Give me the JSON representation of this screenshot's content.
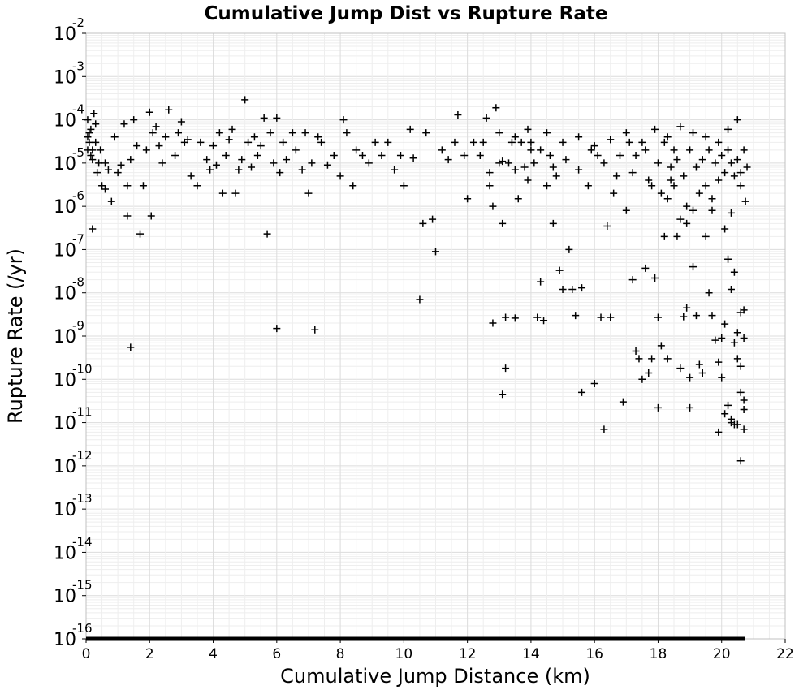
{
  "chart_data": {
    "type": "scatter",
    "title": "Cumulative Jump Dist vs Rupture Rate",
    "xlabel": "Cumulative Jump Distance (km)",
    "ylabel": "Rupture Rate (/yr)",
    "xlim": [
      0,
      22
    ],
    "ylim": [
      1e-16,
      0.01
    ],
    "y_scale": "log",
    "grid": true,
    "marker": "plus",
    "marker_color": "#000000",
    "x_ticks": [
      "0",
      "2",
      "4",
      "6",
      "8",
      "10",
      "12",
      "14",
      "16",
      "18",
      "20",
      "22"
    ],
    "y_ticks": [
      {
        "base": "10",
        "exp": "-2"
      },
      {
        "base": "10",
        "exp": "-3"
      },
      {
        "base": "10",
        "exp": "-4"
      },
      {
        "base": "10",
        "exp": "-5"
      },
      {
        "base": "10",
        "exp": "-6"
      },
      {
        "base": "10",
        "exp": "-7"
      },
      {
        "base": "10",
        "exp": "-8"
      },
      {
        "base": "10",
        "exp": "-9"
      },
      {
        "base": "10",
        "exp": "-10"
      },
      {
        "base": "10",
        "exp": "-11"
      },
      {
        "base": "10",
        "exp": "-12"
      },
      {
        "base": "10",
        "exp": "-13"
      },
      {
        "base": "10",
        "exp": "-14"
      },
      {
        "base": "10",
        "exp": "-15"
      },
      {
        "base": "10",
        "exp": "-16"
      }
    ],
    "points": [
      [
        0.05,
        0.0001
      ],
      [
        0.1,
        3e-05
      ],
      [
        0.15,
        1.5e-05
      ],
      [
        0.2,
        2e-05
      ],
      [
        0.1,
        5e-05
      ],
      [
        0.3,
        8e-05
      ],
      [
        0.25,
        0.00014
      ],
      [
        0.35,
        6e-06
      ],
      [
        0.05,
        4e-05
      ],
      [
        0.4,
        1e-05
      ],
      [
        0.5,
        3e-06
      ],
      [
        0.6,
        2.5e-06
      ],
      [
        0.7,
        7e-06
      ],
      [
        0.8,
        1.3e-06
      ],
      [
        0.2,
        3e-07
      ],
      [
        0.9,
        4e-05
      ],
      [
        1.0,
        6e-06
      ],
      [
        1.1,
        9e-06
      ],
      [
        1.2,
        8e-05
      ],
      [
        1.3,
        3e-06
      ],
      [
        1.4,
        1.2e-05
      ],
      [
        1.5,
        0.0001
      ],
      [
        1.6,
        2.5e-05
      ],
      [
        1.7,
        2.3e-07
      ],
      [
        1.8,
        3e-06
      ],
      [
        1.9,
        2e-05
      ],
      [
        2.0,
        0.00015
      ],
      [
        2.05,
        6e-07
      ],
      [
        2.1,
        5e-05
      ],
      [
        2.2,
        7e-05
      ],
      [
        2.3,
        2.5e-05
      ],
      [
        2.5,
        4e-05
      ],
      [
        2.6,
        0.00017
      ],
      [
        2.8,
        1.5e-05
      ],
      [
        2.9,
        5e-05
      ],
      [
        3.0,
        9e-05
      ],
      [
        3.1,
        3e-05
      ],
      [
        3.3,
        5e-06
      ],
      [
        3.6,
        3e-05
      ],
      [
        3.8,
        1.2e-05
      ],
      [
        3.5,
        3e-06
      ],
      [
        3.9,
        7e-06
      ],
      [
        4.0,
        2.5e-05
      ],
      [
        4.1,
        9e-06
      ],
      [
        4.2,
        5e-05
      ],
      [
        4.3,
        2e-06
      ],
      [
        4.4,
        1.5e-05
      ],
      [
        4.5,
        3.5e-05
      ],
      [
        4.6,
        6e-05
      ],
      [
        4.7,
        2e-06
      ],
      [
        4.8,
        7e-06
      ],
      [
        4.9,
        1.2e-05
      ],
      [
        5.0,
        0.00029
      ],
      [
        5.1,
        3e-05
      ],
      [
        5.2,
        8e-06
      ],
      [
        5.3,
        4e-05
      ],
      [
        5.4,
        1.5e-05
      ],
      [
        5.5,
        2.5e-05
      ],
      [
        5.6,
        0.00011
      ],
      [
        5.7,
        2.3e-07
      ],
      [
        5.8,
        5e-05
      ],
      [
        5.9,
        1e-05
      ],
      [
        6.0,
        1.5e-09
      ],
      [
        6.0,
        0.00011
      ],
      [
        6.1,
        6e-06
      ],
      [
        6.2,
        3e-05
      ],
      [
        6.3,
        1.2e-05
      ],
      [
        6.5,
        5e-05
      ],
      [
        6.6,
        2e-05
      ],
      [
        6.8,
        7e-06
      ],
      [
        6.9,
        5e-05
      ],
      [
        7.0,
        2e-06
      ],
      [
        7.1,
        1e-05
      ],
      [
        7.2,
        1.4e-09
      ],
      [
        7.3,
        4e-05
      ],
      [
        7.4,
        3e-05
      ],
      [
        7.6,
        9e-06
      ],
      [
        7.8,
        1.5e-05
      ],
      [
        8.0,
        5e-06
      ],
      [
        8.1,
        0.0001
      ],
      [
        8.2,
        5e-05
      ],
      [
        8.4,
        3e-06
      ],
      [
        8.5,
        2e-05
      ],
      [
        8.7,
        1.5e-05
      ],
      [
        8.9,
        1e-05
      ],
      [
        9.1,
        3e-05
      ],
      [
        9.3,
        1.5e-05
      ],
      [
        9.5,
        3e-05
      ],
      [
        9.7,
        7e-06
      ],
      [
        9.9,
        1.5e-05
      ],
      [
        10.0,
        3e-06
      ],
      [
        10.2,
        6e-05
      ],
      [
        10.3,
        1.3e-05
      ],
      [
        10.5,
        7e-09
      ],
      [
        10.6,
        4e-07
      ],
      [
        10.7,
        5e-05
      ],
      [
        10.9,
        5e-07
      ],
      [
        11.0,
        9e-08
      ],
      [
        11.2,
        2e-05
      ],
      [
        11.4,
        1.2e-05
      ],
      [
        11.6,
        3e-05
      ],
      [
        11.7,
        0.00013
      ],
      [
        11.9,
        1.5e-05
      ],
      [
        12.0,
        1.5e-06
      ],
      [
        12.2,
        3e-05
      ],
      [
        12.4,
        1.5e-05
      ],
      [
        12.6,
        0.00011
      ],
      [
        12.7,
        3e-06
      ],
      [
        12.8,
        2e-09
      ],
      [
        12.8,
        1e-06
      ],
      [
        12.9,
        0.00019
      ],
      [
        13.0,
        1e-05
      ],
      [
        13.1,
        4.5e-11
      ],
      [
        13.1,
        4e-07
      ],
      [
        13.2,
        1.8e-10
      ],
      [
        13.2,
        2.7e-09
      ],
      [
        13.3,
        1e-05
      ],
      [
        13.4,
        3e-05
      ],
      [
        13.5,
        2.6e-09
      ],
      [
        13.6,
        1.5e-06
      ],
      [
        13.7,
        3e-05
      ],
      [
        13.8,
        8e-06
      ],
      [
        13.9,
        6e-05
      ],
      [
        14.0,
        2e-05
      ],
      [
        14.1,
        1e-05
      ],
      [
        14.2,
        2.7e-09
      ],
      [
        14.3,
        1.8e-08
      ],
      [
        14.4,
        2.3e-09
      ],
      [
        14.5,
        3e-06
      ],
      [
        14.6,
        1.5e-05
      ],
      [
        14.7,
        4e-07
      ],
      [
        14.8,
        5e-06
      ],
      [
        14.9,
        3.3e-08
      ],
      [
        15.0,
        1.2e-08
      ],
      [
        15.2,
        1e-07
      ],
      [
        15.3,
        1.2e-08
      ],
      [
        15.4,
        3e-09
      ],
      [
        15.6,
        1.3e-08
      ],
      [
        15.6,
        5e-11
      ],
      [
        15.8,
        3e-06
      ],
      [
        16.0,
        8e-11
      ],
      [
        16.1,
        1.5e-05
      ],
      [
        16.2,
        2.7e-09
      ],
      [
        16.3,
        7e-12
      ],
      [
        16.4,
        3.5e-07
      ],
      [
        16.5,
        2.7e-09
      ],
      [
        16.6,
        2e-06
      ],
      [
        16.8,
        1.5e-05
      ],
      [
        16.9,
        3e-11
      ],
      [
        17.0,
        8e-07
      ],
      [
        17.2,
        2e-08
      ],
      [
        17.3,
        4.5e-10
      ],
      [
        17.4,
        3e-10
      ],
      [
        17.5,
        1e-10
      ],
      [
        17.6,
        3.7e-08
      ],
      [
        17.7,
        1.4e-10
      ],
      [
        17.8,
        3e-10
      ],
      [
        17.9,
        2.2e-08
      ],
      [
        18.0,
        2.2e-11
      ],
      [
        18.0,
        2.7e-09
      ],
      [
        18.1,
        6e-10
      ],
      [
        18.2,
        2e-07
      ],
      [
        18.3,
        3e-10
      ],
      [
        18.4,
        4e-06
      ],
      [
        18.5,
        2e-05
      ],
      [
        18.6,
        2e-07
      ],
      [
        18.7,
        1.8e-10
      ],
      [
        18.8,
        2.8e-09
      ],
      [
        18.9,
        4e-07
      ],
      [
        18.9,
        4.5e-09
      ],
      [
        19.0,
        2.2e-11
      ],
      [
        19.0,
        1.1e-10
      ],
      [
        19.1,
        4e-08
      ],
      [
        19.2,
        3e-09
      ],
      [
        19.3,
        2.2e-10
      ],
      [
        19.4,
        1.4e-10
      ],
      [
        19.5,
        2e-07
      ],
      [
        19.6,
        1e-08
      ],
      [
        19.7,
        3e-09
      ],
      [
        19.8,
        8e-10
      ],
      [
        19.9,
        2.5e-10
      ],
      [
        19.9,
        6e-12
      ],
      [
        20.0,
        1.1e-10
      ],
      [
        20.0,
        9e-10
      ],
      [
        20.1,
        1.6e-11
      ],
      [
        20.1,
        1.9e-09
      ],
      [
        20.2,
        2.5e-11
      ],
      [
        20.2,
        6e-08
      ],
      [
        20.3,
        1.2e-08
      ],
      [
        20.3,
        1e-11
      ],
      [
        20.4,
        3e-08
      ],
      [
        20.4,
        7e-10
      ],
      [
        20.5,
        1.2e-09
      ],
      [
        20.5,
        3e-10
      ],
      [
        20.6,
        2e-10
      ],
      [
        20.6,
        5e-11
      ],
      [
        20.6,
        1.3e-12
      ],
      [
        20.7,
        2e-11
      ],
      [
        20.7,
        3.3e-11
      ],
      [
        20.7,
        9e-10
      ],
      [
        20.7,
        7e-12
      ],
      [
        20.6,
        3.5e-09
      ],
      [
        20.7,
        4e-09
      ],
      [
        20.4,
        9e-12
      ],
      [
        20.5,
        9e-12
      ],
      [
        20.3,
        1.2e-11
      ],
      [
        17.1,
        3e-05
      ],
      [
        17.3,
        1.5e-05
      ],
      [
        17.6,
        2e-05
      ],
      [
        17.8,
        3e-06
      ],
      [
        18.0,
        1e-05
      ],
      [
        18.2,
        3e-05
      ],
      [
        18.4,
        8e-06
      ],
      [
        18.6,
        1.2e-05
      ],
      [
        18.8,
        5e-06
      ],
      [
        19.0,
        2e-05
      ],
      [
        19.2,
        8e-06
      ],
      [
        19.4,
        1.2e-05
      ],
      [
        19.5,
        3e-06
      ],
      [
        19.6,
        2e-05
      ],
      [
        19.8,
        1e-05
      ],
      [
        19.9,
        4e-06
      ],
      [
        20.0,
        1.5e-05
      ],
      [
        20.1,
        6e-06
      ],
      [
        20.2,
        2e-05
      ],
      [
        20.3,
        1e-05
      ],
      [
        20.4,
        5e-06
      ],
      [
        20.5,
        1.2e-05
      ],
      [
        20.6,
        3e-06
      ],
      [
        20.7,
        2e-05
      ],
      [
        20.75,
        1.3e-06
      ],
      [
        20.8,
        8e-06
      ],
      [
        20.1,
        3e-07
      ],
      [
        19.7,
        8e-07
      ],
      [
        19.3,
        2e-06
      ],
      [
        18.9,
        1e-06
      ],
      [
        18.5,
        3e-06
      ],
      [
        18.1,
        2e-06
      ],
      [
        17.7,
        4e-06
      ],
      [
        17.2,
        6e-06
      ],
      [
        16.7,
        5e-06
      ],
      [
        16.3,
        1e-05
      ],
      [
        15.9,
        2e-05
      ],
      [
        15.5,
        7e-06
      ],
      [
        15.1,
        1.2e-05
      ],
      [
        14.7,
        8e-06
      ],
      [
        14.3,
        2e-05
      ],
      [
        13.9,
        4e-06
      ],
      [
        13.5,
        7e-06
      ],
      [
        13.1,
        1.1e-05
      ],
      [
        12.7,
        6e-06
      ],
      [
        20.5,
        0.0001
      ],
      [
        20.2,
        6e-05
      ],
      [
        19.9,
        3e-05
      ],
      [
        19.5,
        4e-05
      ],
      [
        19.1,
        5e-05
      ],
      [
        18.7,
        7e-05
      ],
      [
        18.3,
        4e-05
      ],
      [
        17.9,
        6e-05
      ],
      [
        17.5,
        3e-05
      ],
      [
        17.0,
        5e-05
      ],
      [
        16.5,
        3.5e-05
      ],
      [
        16.0,
        2.5e-05
      ],
      [
        15.5,
        4e-05
      ],
      [
        15.0,
        3e-05
      ],
      [
        14.5,
        5e-05
      ],
      [
        14.0,
        3e-05
      ],
      [
        13.5,
        4e-05
      ],
      [
        13.0,
        5e-05
      ],
      [
        12.5,
        3e-05
      ],
      [
        20.6,
        6e-06
      ],
      [
        20.3,
        7e-07
      ],
      [
        19.7,
        1.5e-06
      ],
      [
        19.1,
        8e-07
      ],
      [
        18.7,
        5e-07
      ],
      [
        18.3,
        1.5e-06
      ],
      [
        0.15,
        6e-05
      ],
      [
        0.05,
        2e-05
      ],
      [
        0.2,
        1.2e-05
      ],
      [
        0.3,
        3e-05
      ],
      [
        0.45,
        2e-05
      ],
      [
        0.6,
        1e-05
      ],
      [
        1.3,
        6e-07
      ],
      [
        1.4,
        5.5e-10
      ],
      [
        2.4,
        1e-05
      ],
      [
        3.2,
        3.5e-05
      ]
    ]
  }
}
